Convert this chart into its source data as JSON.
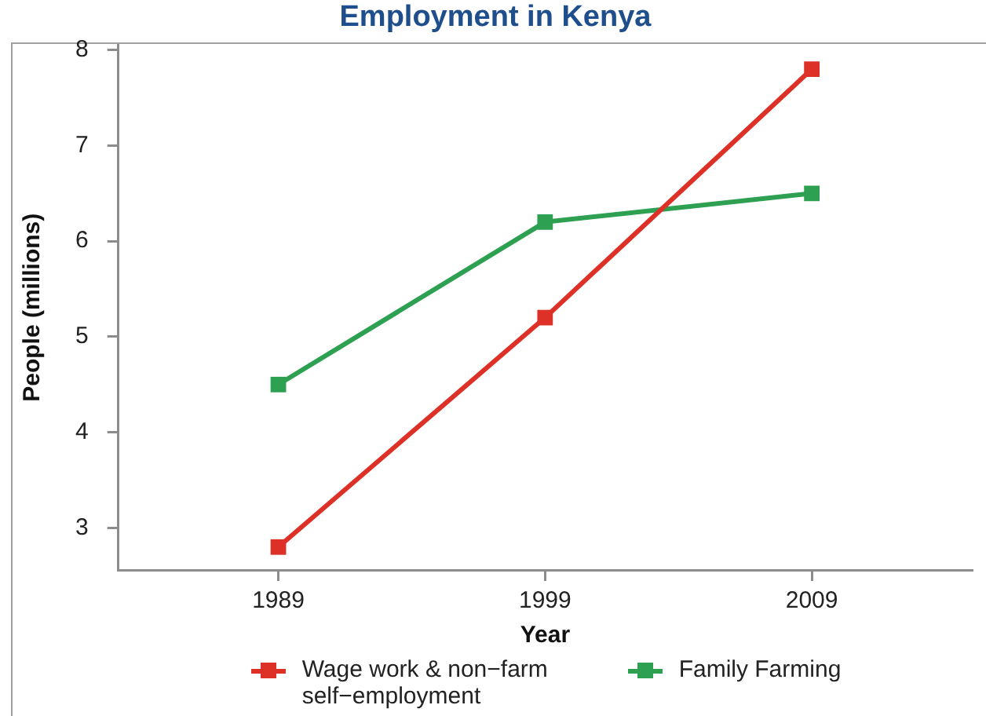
{
  "chart_data": {
    "type": "line",
    "title": "Employment in Kenya",
    "xlabel": "Year",
    "ylabel": "People (millions)",
    "x": [
      1989,
      1999,
      2009
    ],
    "series": [
      {
        "name": "Wage work & non−farm self−employment",
        "color": "#dd3027",
        "values": [
          2.8,
          5.2,
          7.8
        ]
      },
      {
        "name": "Family Farming",
        "color": "#2ea052",
        "values": [
          4.5,
          6.2,
          6.5
        ]
      }
    ],
    "xlim": [
      1983,
      2015
    ],
    "xticks": [
      1989,
      1999,
      2009
    ],
    "ylim": [
      2.56,
      8.05
    ],
    "yticks": [
      3,
      4,
      5,
      6,
      7,
      8
    ],
    "grid": false,
    "legend": "bottom",
    "marker": "square",
    "line_style": "solid"
  }
}
